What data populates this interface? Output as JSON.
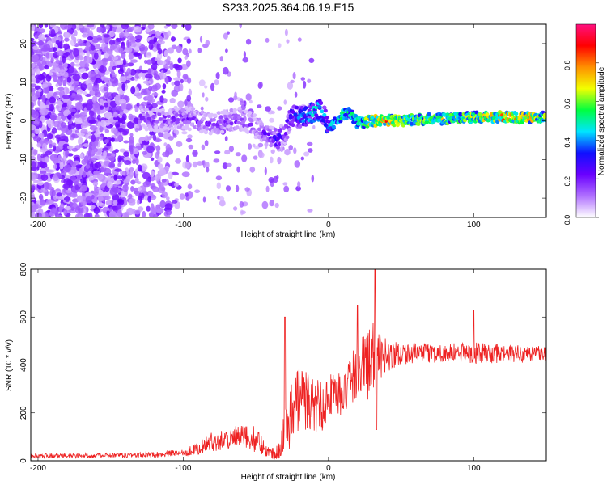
{
  "title": "S233.2025.364.06.19.E15",
  "colors": {
    "snr_line": "#ee2222",
    "frame": "#000000",
    "colorbar": [
      "#ffffff",
      "#b070ff",
      "#6a00ff",
      "#1010ff",
      "#00e5ff",
      "#00ff40",
      "#f2ff00",
      "#ff9000",
      "#ff0000",
      "#ff1080"
    ]
  },
  "chart_data": [
    {
      "type": "heatmap",
      "title": "S233.2025.364.06.19.E15",
      "xlabel": "Height of straight line (km)",
      "ylabel": "Frequency (Hz)",
      "xlim": [
        -205,
        150
      ],
      "ylim": [
        -25,
        25
      ],
      "x_ticks": [
        -200,
        -100,
        0,
        100
      ],
      "x_tick_labels": [
        "-200",
        "-100",
        "0",
        "100"
      ],
      "y_ticks": [
        -20,
        -10,
        0,
        10,
        20
      ],
      "y_tick_labels": [
        "-20",
        "-10",
        "0",
        "10",
        "20"
      ],
      "colorbar": {
        "label": "Normalized spectral amplitude",
        "range": [
          0,
          1
        ],
        "ticks": [
          0,
          0.2,
          0.4,
          0.6,
          0.8
        ],
        "tick_labels": [
          "0.0",
          "0.2",
          "0.4",
          "0.6",
          "0.8"
        ]
      },
      "ridge": {
        "x": [
          -130,
          -120,
          -110,
          -100,
          -90,
          -80,
          -70,
          -60,
          -50,
          -40,
          -35,
          -30,
          -25,
          -20,
          -15,
          -10,
          -5,
          0,
          5,
          10,
          15,
          20,
          30,
          40,
          50,
          60,
          70,
          80,
          90,
          100,
          110,
          120,
          130,
          140,
          150
        ],
        "freq_hz": [
          1,
          0,
          0.5,
          1,
          0,
          -1,
          0,
          0.5,
          -1.5,
          -4,
          -5,
          -3,
          1.5,
          0.5,
          1,
          2.5,
          3,
          -2,
          0,
          1.5,
          2,
          -0.5,
          0,
          0.2,
          0,
          0.3,
          0.5,
          0.5,
          0.8,
          1,
          1,
          1,
          0.8,
          0.8,
          1
        ],
        "amplitude": [
          0.2,
          0.2,
          0.22,
          0.22,
          0.22,
          0.2,
          0.22,
          0.22,
          0.2,
          0.25,
          0.3,
          0.3,
          0.35,
          0.4,
          0.45,
          0.5,
          0.5,
          0.4,
          0.45,
          0.55,
          0.5,
          0.55,
          0.7,
          0.8,
          0.7,
          0.6,
          0.6,
          0.65,
          0.6,
          0.65,
          0.7,
          0.8,
          0.8,
          0.7,
          0.65
        ]
      },
      "noise_region": {
        "x_range": [
          -205,
          -100
        ],
        "freq_range": [
          -25,
          25
        ],
        "typical_amplitude": 0.1
      }
    },
    {
      "type": "line",
      "title": "",
      "xlabel": "Height of straight line (km)",
      "ylabel": "SNR (10 * v/v)",
      "xlim": [
        -205,
        150
      ],
      "ylim": [
        0,
        800
      ],
      "x_ticks": [
        -200,
        -100,
        0,
        100
      ],
      "x_tick_labels": [
        "-200",
        "-100",
        "0",
        "100"
      ],
      "y_ticks": [
        0,
        200,
        400,
        600,
        800
      ],
      "y_tick_labels": [
        "0",
        "200",
        "400",
        "600",
        "800"
      ],
      "series": [
        {
          "name": "SNR",
          "envelope_x": [
            -205,
            -150,
            -120,
            -100,
            -90,
            -80,
            -70,
            -60,
            -50,
            -40,
            -35,
            -30,
            -25,
            -20,
            -15,
            -10,
            -5,
            0,
            5,
            10,
            15,
            20,
            25,
            30,
            35,
            40,
            50,
            60,
            80,
            100,
            120,
            150
          ],
          "envelope_mean": [
            20,
            22,
            25,
            35,
            50,
            80,
            90,
            100,
            90,
            30,
            40,
            130,
            200,
            280,
            250,
            230,
            230,
            270,
            300,
            250,
            330,
            380,
            400,
            420,
            430,
            440,
            450,
            450,
            450,
            450,
            445,
            450
          ],
          "envelope_spread": [
            10,
            10,
            12,
            15,
            25,
            40,
            45,
            50,
            55,
            20,
            40,
            90,
            150,
            150,
            130,
            120,
            120,
            90,
            90,
            100,
            110,
            110,
            150,
            170,
            100,
            70,
            50,
            40,
            40,
            45,
            40,
            35
          ],
          "peaks": [
            {
              "x": -30,
              "y": 600
            },
            {
              "x": 20,
              "y": 650
            },
            {
              "x": 32,
              "y": 800
            },
            {
              "x": 33,
              "y": 130
            },
            {
              "x": 100,
              "y": 630
            }
          ]
        }
      ]
    }
  ]
}
